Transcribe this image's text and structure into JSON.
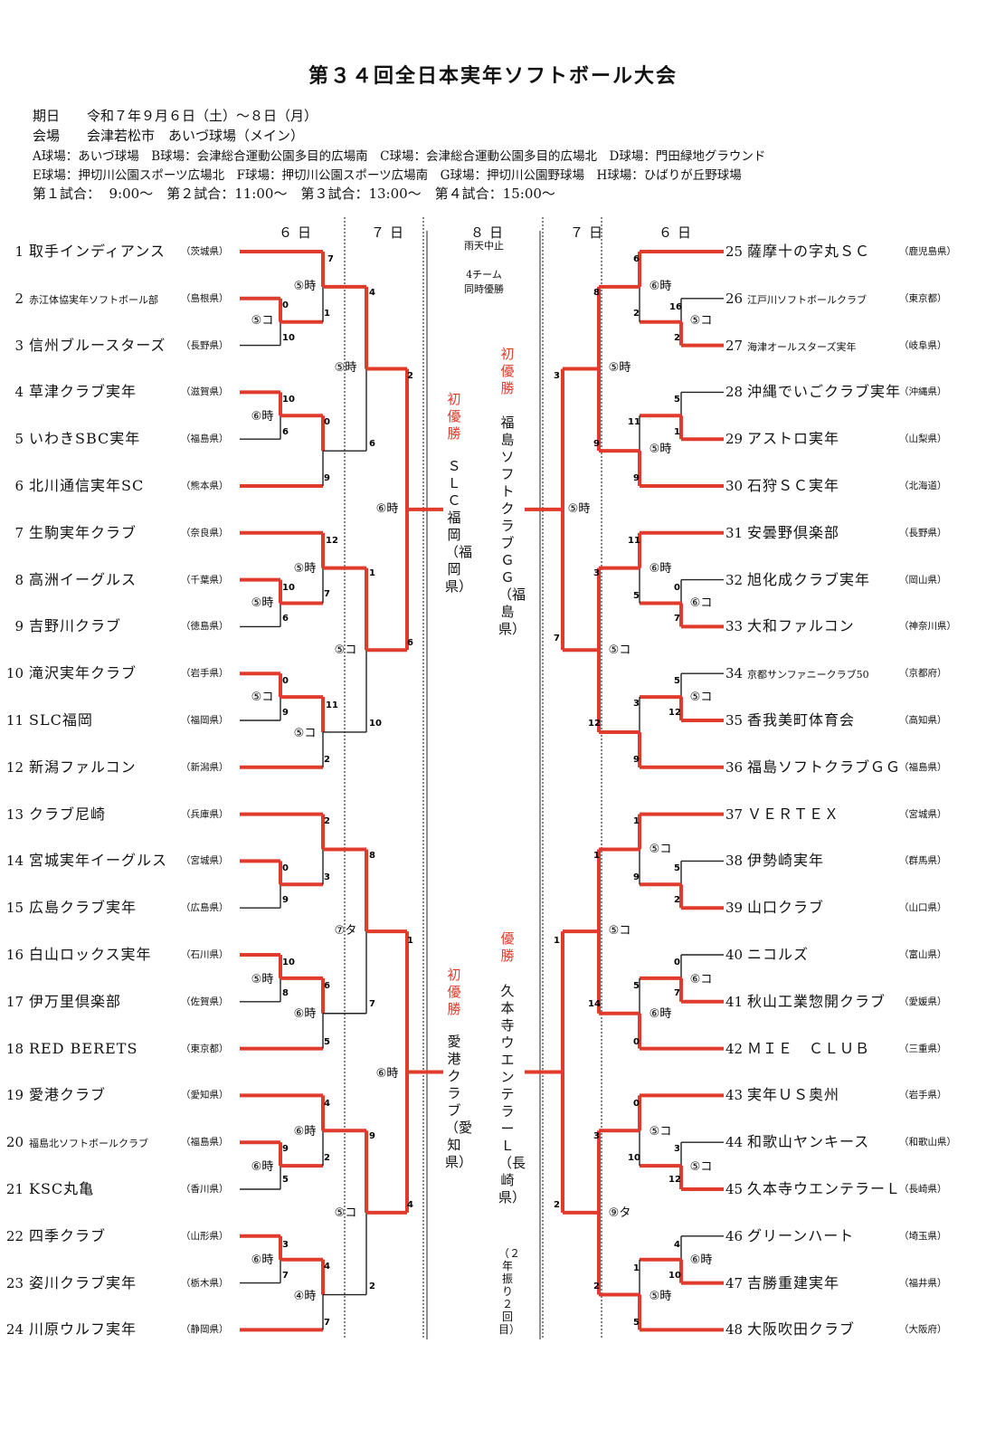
{
  "title": "第３４回全日本実年ソフトボール大会",
  "info": {
    "date_label": "期日",
    "date_value": "令和７年９月６日（土）～８日（月）",
    "venue_label": "会場",
    "venue_value": "会津若松市　あいづ球場（メイン）",
    "fields_line1": "A球場：あいづ球場　B球場：会津総合運動公園多目的広場南　C球場：会津総合運動公園多目的広場北　D球場：門田緑地グラウンド",
    "fields_line2": "E球場：押切川公園スポーツ広場北　F球場：押切川公園スポーツ広場南　G球場：押切川公園野球場　H球場：ひばりが丘野球場",
    "times": "第１試合：  9:00～　第２試合：11:00～　第３試合：13:00～　第４試合：15:00～"
  },
  "days": {
    "left1": "６日",
    "left2": "７日",
    "center": "８日",
    "right2": "７日",
    "right1": "６日"
  },
  "center_note": {
    "line1": "雨天中止",
    "line2": "4チーム",
    "line3": "同時優勝"
  },
  "winners": {
    "w1_label": "初優勝",
    "w1_team": "ＳＬＣ福岡（福岡県）",
    "w2_label": "初優勝",
    "w2_team": "福島ソフトクラブＧＧ（福島県）",
    "w3_label": "初優勝",
    "w3_team": "愛港クラブ（愛知県）",
    "w4_label": "優勝",
    "w4_team": "久本寺ウエンテラーＬ（長崎県）",
    "w4_note": "（２年振り２回目）"
  },
  "teams_left": [
    {
      "no": "1",
      "name": "取手インディアンス",
      "pref": "（茨城県）"
    },
    {
      "no": "2",
      "name": "赤江体協実年ソフトボール部",
      "pref": "（島根県）"
    },
    {
      "no": "3",
      "name": "信州ブルースターズ",
      "pref": "（長野県）"
    },
    {
      "no": "4",
      "name": "草津クラブ実年",
      "pref": "（滋賀県）"
    },
    {
      "no": "5",
      "name": "いわきSBC実年",
      "pref": "（福島県）"
    },
    {
      "no": "6",
      "name": "北川通信実年SC",
      "pref": "（熊本県）"
    },
    {
      "no": "7",
      "name": "生駒実年クラブ",
      "pref": "（奈良県）"
    },
    {
      "no": "8",
      "name": "高洲イーグルス",
      "pref": "（千葉県）"
    },
    {
      "no": "9",
      "name": "吉野川クラブ",
      "pref": "（徳島県）"
    },
    {
      "no": "10",
      "name": "滝沢実年クラブ",
      "pref": "（岩手県）"
    },
    {
      "no": "11",
      "name": "SLC福岡",
      "pref": "（福岡県）"
    },
    {
      "no": "12",
      "name": "新潟ファルコン",
      "pref": "（新潟県）"
    },
    {
      "no": "13",
      "name": "クラブ尼崎",
      "pref": "（兵庫県）"
    },
    {
      "no": "14",
      "name": "宮城実年イーグルス",
      "pref": "（宮城県）"
    },
    {
      "no": "15",
      "name": "広島クラブ実年",
      "pref": "（広島県）"
    },
    {
      "no": "16",
      "name": "白山ロックス実年",
      "pref": "（石川県）"
    },
    {
      "no": "17",
      "name": "伊万里倶楽部",
      "pref": "（佐賀県）"
    },
    {
      "no": "18",
      "name": "RED BERETS",
      "pref": "（東京都）"
    },
    {
      "no": "19",
      "name": "愛港クラブ",
      "pref": "（愛知県）"
    },
    {
      "no": "20",
      "name": "福島北ソフトボールクラブ",
      "pref": "（福島県）"
    },
    {
      "no": "21",
      "name": "KSC丸亀",
      "pref": "（香川県）"
    },
    {
      "no": "22",
      "name": "四季クラブ",
      "pref": "（山形県）"
    },
    {
      "no": "23",
      "name": "姿川クラブ実年",
      "pref": "（栃木県）"
    },
    {
      "no": "24",
      "name": "川原ウルフ実年",
      "pref": "（静岡県）"
    }
  ],
  "teams_right": [
    {
      "no": "25",
      "name": "薩摩十の字丸ＳＣ",
      "pref": "（鹿児島県）"
    },
    {
      "no": "26",
      "name": "江戸川ソフトボールクラブ",
      "pref": "（東京都）"
    },
    {
      "no": "27",
      "name": "海津オールスターズ実年",
      "pref": "（岐阜県）"
    },
    {
      "no": "28",
      "name": "沖縄でいごクラブ実年",
      "pref": "（沖縄県）"
    },
    {
      "no": "29",
      "name": "アストロ実年",
      "pref": "（山梨県）"
    },
    {
      "no": "30",
      "name": "石狩ＳＣ実年",
      "pref": "（北海道）"
    },
    {
      "no": "31",
      "name": "安曇野倶楽部",
      "pref": "（長野県）"
    },
    {
      "no": "32",
      "name": "旭化成クラブ実年",
      "pref": "（岡山県）"
    },
    {
      "no": "33",
      "name": "大和ファルコン",
      "pref": "（神奈川県）"
    },
    {
      "no": "34",
      "name": "京都サンファニークラブ50",
      "pref": "（京都府）"
    },
    {
      "no": "35",
      "name": "香我美町体育会",
      "pref": "（高知県）"
    },
    {
      "no": "36",
      "name": "福島ソフトクラブＧＧ",
      "pref": "（福島県）"
    },
    {
      "no": "37",
      "name": "ＶＥＲＴＥＸ",
      "pref": "（宮城県）"
    },
    {
      "no": "38",
      "name": "伊勢崎実年",
      "pref": "（群馬県）"
    },
    {
      "no": "39",
      "name": "山口クラブ",
      "pref": "（山口県）"
    },
    {
      "no": "40",
      "name": "ニコルズ",
      "pref": "（富山県）"
    },
    {
      "no": "41",
      "name": "秋山工業惣開クラブ",
      "pref": "（愛媛県）"
    },
    {
      "no": "42",
      "name": "ＭＩＥ　ＣＬＵＢ",
      "pref": "（三重県）"
    },
    {
      "no": "43",
      "name": "実年ＵＳ奥州",
      "pref": "（岩手県）"
    },
    {
      "no": "44",
      "name": "和歌山ヤンキース",
      "pref": "（和歌山県）"
    },
    {
      "no": "45",
      "name": "久本寺ウエンテラーＬ",
      "pref": "（長崎県）"
    },
    {
      "no": "46",
      "name": "グリーンハート",
      "pref": "（埼玉県）"
    },
    {
      "no": "47",
      "name": "吉勝重建実年",
      "pref": "（福井県）"
    },
    {
      "no": "48",
      "name": "大阪吹田クラブ",
      "pref": "（大阪府）"
    }
  ],
  "scores_left": {
    "r1": [
      [
        "7",
        "1"
      ],
      [
        "10",
        "0"
      ],
      [
        "6",
        "9"
      ],
      [
        "12",
        "7"
      ],
      [
        "10",
        "6"
      ],
      [
        "0",
        "9"
      ],
      [
        "11",
        "2"
      ]
    ],
    "r1b": [
      [
        "0",
        "10"
      ],
      [
        "10",
        "6"
      ],
      [
        "0",
        "9"
      ],
      [
        "9",
        "2"
      ]
    ],
    "r2": [
      [
        "4",
        "6"
      ],
      [
        "1",
        "10"
      ],
      [
        "8",
        "7"
      ],
      [
        "9",
        "2"
      ]
    ],
    "r3": [
      [
        "2",
        "6"
      ],
      [
        "1",
        "4"
      ]
    ],
    "r1c": [
      [
        "2",
        "3"
      ],
      [
        "6",
        "5"
      ],
      [
        "4",
        "2"
      ]
    ],
    "r1d": [
      [
        "3",
        "7"
      ],
      [
        "4",
        "7"
      ]
    ]
  },
  "scores_right": {
    "r2": [
      [
        "6",
        "8"
      ],
      [
        "3",
        "9"
      ],
      [
        "11",
        "3"
      ],
      [
        "12",
        "9"
      ],
      [
        "1",
        "14"
      ],
      [
        "3",
        "2"
      ]
    ],
    "r1": [
      [
        "16",
        "2"
      ],
      [
        "5",
        "1"
      ],
      [
        "0",
        "7"
      ],
      [
        "5",
        "12"
      ],
      [
        "5",
        "2"
      ],
      [
        "0",
        "7"
      ],
      [
        "3",
        "12"
      ],
      [
        "4",
        "10"
      ]
    ],
    "r1b": [
      [
        "2"
      ],
      [
        "11",
        "9"
      ],
      [
        "5"
      ],
      [
        "3"
      ],
      [
        "1",
        "9"
      ],
      [
        "5",
        "0"
      ],
      [
        "0",
        "10"
      ],
      [
        "1",
        "5"
      ]
    ],
    "r3": [
      [
        "3",
        "7"
      ],
      [
        "1",
        "2"
      ]
    ]
  },
  "labels": {
    "l1": "⑤時",
    "l2": "⑤コ",
    "l3": "⑤時",
    "l4": "⑥時",
    "l5": "⑤時",
    "l6": "⑤時",
    "l7": "⑤コ",
    "l8": "⑤コ",
    "l9": "⑤コ",
    "l10": "⑥時",
    "l11": "⑦タ",
    "l12": "⑤時",
    "l13": "⑥時",
    "l14": "⑥時",
    "l15": "⑥時",
    "l16": "⑥時",
    "l17": "⑤コ",
    "l18": "⑥時",
    "l19": "④時",
    "r1": "⑥時",
    "r2": "⑤コ",
    "r3": "⑤時",
    "r4": "⑤時",
    "r5": "⑤時",
    "r6": "⑥時",
    "r7": "⑥コ",
    "r8": "⑤コ",
    "r9": "⑤コ",
    "r10": "⑤コ",
    "r11": "⑤コ",
    "r12": "⑥コ",
    "r13": "⑥時",
    "r14": "⑤コ",
    "r15": "⑤コ",
    "r16": "⑨タ",
    "r17": "⑥時",
    "r18": "⑤時"
  },
  "colors": {
    "win": "#e03b2d",
    "line": "#222222"
  }
}
